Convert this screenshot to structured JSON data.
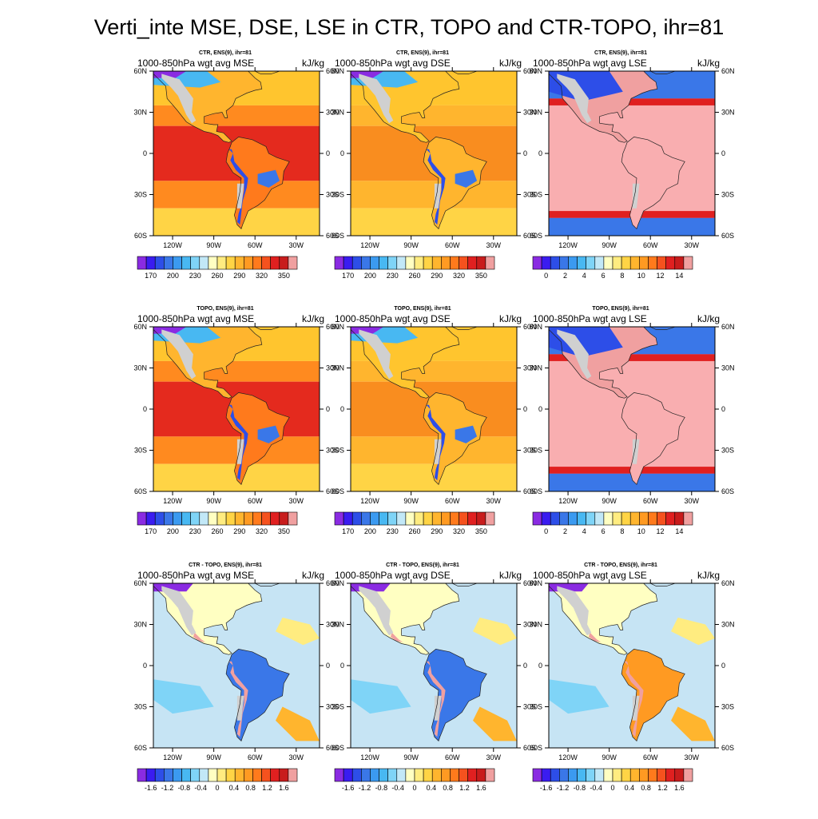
{
  "title": "Verti_inte MSE, DSE, LSE in CTR, TOPO and CTR-TOPO, ihr=81",
  "lat_labels": [
    "60N",
    "30N",
    "0",
    "30S",
    "60S"
  ],
  "lon_labels": [
    "120W",
    "90W",
    "60W",
    "30W"
  ],
  "unit": "kJ/kg",
  "colorbars": {
    "energy": {
      "labels": [
        "170",
        "200",
        "230",
        "260",
        "290",
        "320",
        "350"
      ],
      "colors": [
        "#8a2be2",
        "#3a1cf0",
        "#2d4ee8",
        "#3a77e8",
        "#3b9af0",
        "#48b8f2",
        "#7fd4f7",
        "#c2e8f7",
        "#ffffc2",
        "#ffec80",
        "#ffd445",
        "#ffb52e",
        "#ff9a22",
        "#ff7a1c",
        "#f5521e",
        "#e02020",
        "#c81c1c",
        "#f0a0a0"
      ]
    },
    "latent": {
      "labels": [
        "0",
        "2",
        "4",
        "6",
        "8",
        "10",
        "12",
        "14"
      ],
      "colors": [
        "#8a2be2",
        "#3a1cf0",
        "#2d4ee8",
        "#3a77e8",
        "#3b9af0",
        "#48b8f2",
        "#7fd4f7",
        "#c2e8f7",
        "#ffffc2",
        "#ffec80",
        "#ffd445",
        "#ffb52e",
        "#ff9a22",
        "#ff7a1c",
        "#f5521e",
        "#e02020",
        "#c81c1c",
        "#f0a0a0"
      ]
    },
    "diff": {
      "labels": [
        "-1.6",
        "-1.2",
        "-0.8",
        "-0.4",
        "0",
        "0.4",
        "0.8",
        "1.2",
        "1.6"
      ],
      "colors": [
        "#8a2be2",
        "#3a1cf0",
        "#2d4ee8",
        "#3a77e8",
        "#3b9af0",
        "#48b8f2",
        "#7fd4f7",
        "#c2e8f7",
        "#ffffc2",
        "#ffec80",
        "#ffd445",
        "#ffb52e",
        "#ff9a22",
        "#ff7a1c",
        "#f5521e",
        "#e02020",
        "#c81c1c",
        "#f0a0a0"
      ]
    }
  },
  "colors": {
    "ocean_mse": "#e42a1e",
    "ocean_dse": "#f98d1f",
    "ocean_lse": "#f9aeb0",
    "ocean_diff": "#c6e4f4",
    "missing": "#d0d0d0"
  },
  "panels": [
    {
      "subtitle": "CTR, ENS(9), ihr=81",
      "left_title": "1000-850hPa wgt avg MSE",
      "cbar": "energy",
      "field": "mse"
    },
    {
      "subtitle": "CTR, ENS(9), ihr=81",
      "left_title": "1000-850hPa wgt avg DSE",
      "cbar": "energy",
      "field": "dse"
    },
    {
      "subtitle": "CTR, ENS(9), ihr=81",
      "left_title": "1000-850hPa wgt avg LSE",
      "cbar": "latent",
      "field": "lse"
    },
    {
      "subtitle": "TOPO, ENS(9), ihr=81",
      "left_title": "1000-850hPa wgt avg MSE",
      "cbar": "energy",
      "field": "mse"
    },
    {
      "subtitle": "TOPO, ENS(9), ihr=81",
      "left_title": "1000-850hPa wgt avg DSE",
      "cbar": "energy",
      "field": "dse"
    },
    {
      "subtitle": "TOPO, ENS(9), ihr=81",
      "left_title": "1000-850hPa wgt avg LSE",
      "cbar": "latent",
      "field": "lse"
    },
    {
      "subtitle": "CTR - TOPO, ENS(9), ihr=81",
      "left_title": "1000-850hPa wgt avg MSE",
      "cbar": "diff",
      "field": "diff_mse"
    },
    {
      "subtitle": "CTR - TOPO, ENS(9), ihr=81",
      "left_title": "1000-850hPa wgt avg DSE",
      "cbar": "diff",
      "field": "diff_dse"
    },
    {
      "subtitle": "CTR - TOPO, ENS(9), ihr=81",
      "left_title": "1000-850hPa wgt avg LSE",
      "cbar": "diff",
      "field": "diff_lse"
    }
  ]
}
